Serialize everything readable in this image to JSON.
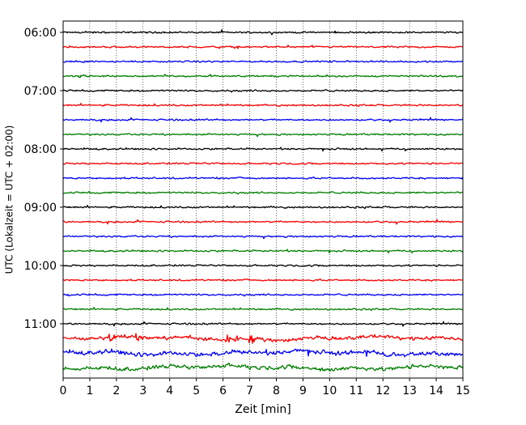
{
  "chart_data": {
    "type": "line",
    "chart_style": "helicorder",
    "title": "",
    "xlabel": "Zeit  [min]",
    "ylabel": "UTC (Lokalzeit = UTC + 02:00)",
    "xlim": [
      0,
      15
    ],
    "x_ticks": [
      "0",
      "1",
      "2",
      "3",
      "4",
      "5",
      "6",
      "7",
      "8",
      "9",
      "10",
      "11",
      "12",
      "13",
      "14",
      "15"
    ],
    "y_tick_labels": [
      "06:00",
      "07:00",
      "08:00",
      "09:00",
      "10:00",
      "11:00"
    ],
    "start_time": "06:00",
    "minutes_per_line": 15,
    "line_count": 24,
    "grid": "vertical dotted lines at each minute",
    "trace_colors": [
      "#000000",
      "#ff0000",
      "#0000ff",
      "#008000"
    ],
    "trace_amplitude_scale": [
      1,
      1,
      1,
      1,
      1,
      1,
      1,
      1,
      1,
      1,
      1,
      1,
      1,
      1,
      1,
      1,
      1,
      1,
      1,
      1,
      1,
      2.2,
      2.5,
      2.4
    ],
    "events": [
      {
        "line": 21,
        "minute": 1.75,
        "amplitude": 10
      },
      {
        "line": 21,
        "minute": 2.75,
        "amplitude": 5
      },
      {
        "line": 21,
        "minute": 6.1,
        "amplitude": 11
      },
      {
        "line": 21,
        "minute": 6.5,
        "amplitude": 7
      },
      {
        "line": 21,
        "minute": 7.0,
        "amplitude": 8
      },
      {
        "line": 22,
        "minute": 11.3,
        "amplitude": 4
      },
      {
        "line": 3,
        "minute": 0.6,
        "amplitude": 3
      }
    ]
  }
}
